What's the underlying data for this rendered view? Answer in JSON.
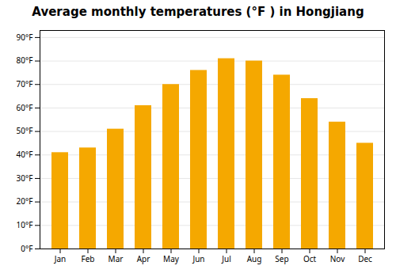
{
  "chart_data": {
    "type": "bar",
    "title": "Average monthly temperatures (°F ) in Hongjiang",
    "categories": [
      "Jan",
      "Feb",
      "Mar",
      "Apr",
      "May",
      "Jun",
      "Jul",
      "Aug",
      "Sep",
      "Oct",
      "Nov",
      "Dec"
    ],
    "values": [
      41,
      43,
      51,
      61,
      70,
      76,
      81,
      80,
      74,
      64,
      54,
      45
    ],
    "color": "#F5A800",
    "ylim": [
      0,
      93
    ],
    "yticks": [
      {
        "value": 0,
        "label": "0°F"
      },
      {
        "value": 10,
        "label": "10°F"
      },
      {
        "value": 20,
        "label": "20°F"
      },
      {
        "value": 30,
        "label": "30°F"
      },
      {
        "value": 40,
        "label": "40°F"
      },
      {
        "value": 50,
        "label": "50°F"
      },
      {
        "value": 60,
        "label": "60°F"
      },
      {
        "value": 70,
        "label": "70°F"
      },
      {
        "value": 80,
        "label": "80°F"
      },
      {
        "value": 90,
        "label": "90°F"
      }
    ],
    "grid": true
  }
}
